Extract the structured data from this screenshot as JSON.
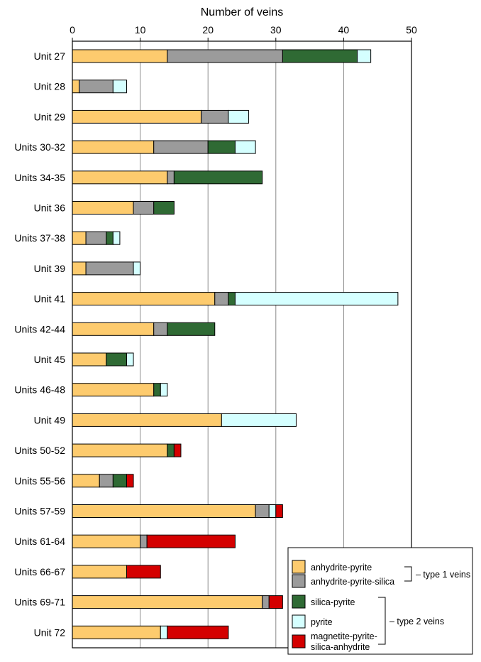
{
  "chart_data": {
    "type": "bar",
    "orientation": "horizontal",
    "stacked": true,
    "xlabel": "Number of veins",
    "xaxis_position": "top",
    "xlim": [
      0,
      50
    ],
    "xticks": [
      0,
      10,
      20,
      30,
      40,
      50
    ],
    "grid": "vertical",
    "legend_position": "bottom-right",
    "categories": [
      "Unit 27",
      "Unit 28",
      "Unit 29",
      "Units 30-32",
      "Units 34-35",
      "Unit 36",
      "Units 37-38",
      "Unit 39",
      "Unit 41",
      "Units 42-44",
      "Unit 45",
      "Units 46-48",
      "Unit 49",
      "Units 50-52",
      "Units 55-56",
      "Units 57-59",
      "Units 61-64",
      "Units 66-67",
      "Units 69-71",
      "Unit 72"
    ],
    "series": [
      {
        "name": "anhydrite-pyrite",
        "color": "#FDCB6E",
        "values": [
          14,
          1,
          19,
          12,
          14,
          9,
          2,
          2,
          21,
          12,
          5,
          12,
          22,
          14,
          4,
          27,
          10,
          8,
          28,
          13
        ]
      },
      {
        "name": "anhydrite-pyrite-silica",
        "color": "#9B9B9B",
        "values": [
          17,
          5,
          4,
          8,
          1,
          3,
          3,
          7,
          2,
          2,
          0,
          0,
          0,
          0,
          2,
          2,
          1,
          0,
          1,
          0
        ]
      },
      {
        "name": "silica-pyrite",
        "color": "#2F6A34",
        "values": [
          11,
          0,
          0,
          4,
          13,
          3,
          1,
          0,
          1,
          7,
          3,
          1,
          0,
          1,
          2,
          0,
          0,
          0,
          0,
          0
        ]
      },
      {
        "name": "pyrite",
        "color": "#D5FFFF",
        "values": [
          2,
          2,
          3,
          3,
          0,
          0,
          1,
          1,
          24,
          0,
          1,
          1,
          11,
          0,
          0,
          1,
          0,
          0,
          0,
          1
        ]
      },
      {
        "name": "magnetite-pyrite-\nsilica-anhydrite",
        "color": "#D40000",
        "values": [
          0,
          0,
          0,
          0,
          0,
          0,
          0,
          0,
          0,
          0,
          0,
          0,
          0,
          1,
          1,
          1,
          13,
          5,
          2,
          9
        ]
      }
    ],
    "legend": {
      "items": [
        {
          "lines": [
            "anhydrite-pyrite"
          ],
          "color": "#FDCB6E"
        },
        {
          "lines": [
            "anhydrite-pyrite-silica"
          ],
          "color": "#9B9B9B"
        },
        {
          "lines": [
            "silica-pyrite"
          ],
          "color": "#2F6A34"
        },
        {
          "lines": [
            "pyrite"
          ],
          "color": "#D5FFFF"
        },
        {
          "lines": [
            "magnetite-pyrite-",
            "silica-anhydrite"
          ],
          "color": "#D40000"
        }
      ],
      "groups": [
        {
          "label": "– type 1 veins",
          "members": [
            0,
            1
          ]
        },
        {
          "label": "– type 2 veins",
          "members": [
            2,
            3,
            4
          ]
        }
      ]
    }
  }
}
